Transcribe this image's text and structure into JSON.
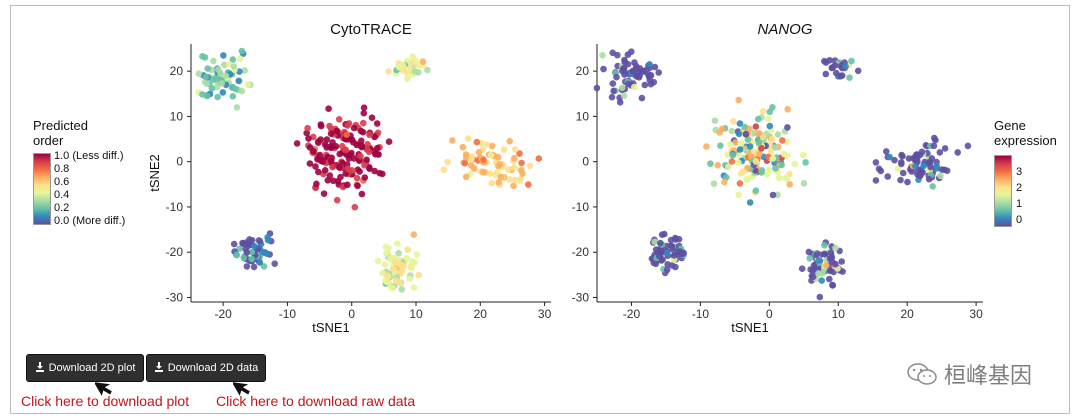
{
  "panels": [
    {
      "title": "CytoTRACE",
      "italic": false,
      "xlabel": "tSNE1",
      "ylabel": "tSNE2",
      "xticks": [
        "-20",
        "-10",
        "0",
        "10",
        "20",
        "30"
      ],
      "yticks": [
        "20",
        "10",
        "0",
        "-10",
        "-20",
        "-30"
      ]
    },
    {
      "title": "NANOG",
      "italic": true,
      "xlabel": "tSNE1",
      "ylabel": "",
      "xticks": [
        "-20",
        "-10",
        "0",
        "10",
        "20",
        "30"
      ],
      "yticks": [
        "20",
        "10",
        "0",
        "-10",
        "-20",
        "-30"
      ]
    }
  ],
  "legend_left": {
    "title_line1": "Predicted",
    "title_line2": "order",
    "labels": [
      "1.0 (Less diff.)",
      "0.8",
      "0.6",
      "0.4",
      "0.2",
      "0.0 (More diff.)"
    ]
  },
  "legend_right": {
    "title_line1": "Gene",
    "title_line2": "expression",
    "labels": [
      "3",
      "2",
      "1",
      "0"
    ]
  },
  "buttons": {
    "plot_label": "Download 2D plot",
    "data_label": "Download 2D data"
  },
  "annotations": {
    "plot": "Click here to download plot",
    "data": "Click here to download raw data"
  },
  "watermark": "桓峰基因",
  "colors": {
    "annotation": "#c0151b",
    "button": "#2f2f2f",
    "dot_low": "#3f4ea0",
    "dot_high": "#b2182b"
  },
  "chart_data": [
    {
      "type": "scatter",
      "title": "CytoTRACE",
      "xlabel": "tSNE1",
      "ylabel": "tSNE2",
      "xlim": [
        -25,
        31
      ],
      "ylim": [
        -31,
        26
      ],
      "color_by": "Predicted order (0-1)",
      "clusters": [
        {
          "center": [
            -20,
            19
          ],
          "spread": [
            3.5,
            4
          ],
          "value": 0.3,
          "n": 70
        },
        {
          "center": [
            9,
            21
          ],
          "spread": [
            2,
            1.5
          ],
          "value": 0.45,
          "n": 30
        },
        {
          "center": [
            -1,
            2
          ],
          "spread": [
            5,
            7
          ],
          "value": 0.93,
          "n": 170
        },
        {
          "center": [
            22,
            0
          ],
          "spread": [
            5,
            4
          ],
          "value": 0.6,
          "n": 80
        },
        {
          "center": [
            -15,
            -20
          ],
          "spread": [
            2.5,
            3
          ],
          "value": 0.1,
          "n": 60
        },
        {
          "center": [
            7,
            -23
          ],
          "spread": [
            2.5,
            4
          ],
          "value": 0.45,
          "n": 70
        }
      ]
    },
    {
      "type": "scatter",
      "title": "NANOG",
      "xlabel": "tSNE1",
      "ylabel": "",
      "xlim": [
        -25,
        31
      ],
      "ylim": [
        -31,
        26
      ],
      "color_by": "Gene expression (0-3.5)",
      "clusters": [
        {
          "center": [
            -20,
            19
          ],
          "spread": [
            3.5,
            4
          ],
          "value": 0.2,
          "n": 70
        },
        {
          "center": [
            10,
            21
          ],
          "spread": [
            2,
            1.5
          ],
          "value": 0.3,
          "n": 30
        },
        {
          "center": [
            -2,
            2
          ],
          "spread": [
            5,
            7
          ],
          "value": 1.6,
          "n": 170
        },
        {
          "center": [
            22,
            0
          ],
          "spread": [
            5,
            4
          ],
          "value": 0.2,
          "n": 80
        },
        {
          "center": [
            -15,
            -20
          ],
          "spread": [
            2.5,
            3
          ],
          "value": 0.1,
          "n": 60
        },
        {
          "center": [
            8,
            -23
          ],
          "spread": [
            2.5,
            4
          ],
          "value": 0.8,
          "n": 70
        }
      ]
    }
  ]
}
